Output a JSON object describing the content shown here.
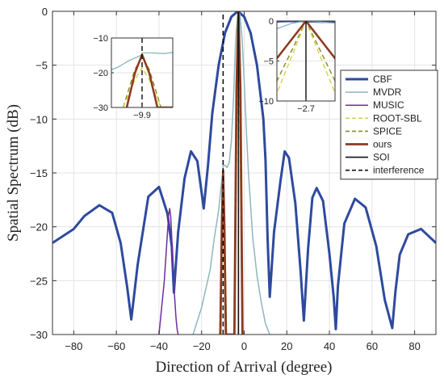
{
  "chart_data": {
    "type": "line",
    "xlabel": "Direction of Arrival (degree)",
    "ylabel": "Spatial Spectrum (dB)",
    "xlim": [
      -90,
      90
    ],
    "ylim": [
      -30,
      0
    ],
    "xticks": [
      -80,
      -60,
      -40,
      -20,
      0,
      20,
      40,
      60,
      80
    ],
    "yticks": [
      0,
      -5,
      -10,
      -15,
      -20,
      -25,
      -30
    ],
    "grid": true,
    "legend_position": "right",
    "series": [
      {
        "name": "CBF",
        "color": "#2e4a9e",
        "style": "solid",
        "x": [
          -90,
          -80,
          -75,
          -68,
          -62,
          -58,
          -55,
          -53,
          -50,
          -45,
          -40,
          -36,
          -34,
          -33,
          -31,
          -28,
          -25,
          -22,
          -20,
          -19,
          -17,
          -15,
          -12,
          -9,
          -6,
          -3,
          0,
          3,
          6,
          9,
          10,
          11,
          12,
          14,
          17,
          19,
          21,
          24,
          26.5,
          28,
          30,
          32,
          34,
          37,
          40,
          42,
          43,
          44,
          47,
          52,
          57,
          62,
          66,
          69.5,
          71,
          73,
          77,
          83,
          90
        ],
        "y": [
          -21.5,
          -20.2,
          -19.0,
          -18.0,
          -18.7,
          -21.5,
          -25.5,
          -28.6,
          -23.5,
          -17.2,
          -16.3,
          -18.8,
          -21.8,
          -26.1,
          -20.5,
          -15.5,
          -13.0,
          -13.9,
          -16.8,
          -18.3,
          -14.3,
          -9.5,
          -5.0,
          -2.0,
          -0.5,
          0.0,
          -0.5,
          -2.0,
          -5.0,
          -10.0,
          -13.8,
          -21.2,
          -26.5,
          -20.5,
          -15.8,
          -13.0,
          -13.6,
          -17.8,
          -24.2,
          -28.7,
          -22.0,
          -17.3,
          -16.4,
          -17.6,
          -22.5,
          -26.5,
          -29.5,
          -25.5,
          -19.7,
          -17.4,
          -18.2,
          -21.8,
          -26.8,
          -29.4,
          -26.0,
          -22.6,
          -20.7,
          -20.2,
          -21.5
        ]
      },
      {
        "name": "MVDR",
        "color": "#8fb6be",
        "style": "solid",
        "x": [
          -24,
          -20,
          -16,
          -14,
          -12,
          -11,
          -10,
          -9.9,
          -9,
          -8,
          -7,
          -6,
          -5,
          -4,
          -3,
          -2.7,
          -2,
          -1,
          0,
          1,
          2,
          3,
          4,
          6,
          8,
          10,
          12
        ],
        "y": [
          -30,
          -27.5,
          -24,
          -21,
          -18.5,
          -16.5,
          -15.0,
          -14.3,
          -14.3,
          -14.5,
          -14.0,
          -12.0,
          -8.0,
          -2.5,
          -0.3,
          0,
          -0.3,
          -2.5,
          -6.5,
          -11.0,
          -15.0,
          -18.0,
          -21.0,
          -24.5,
          -27.0,
          -29.0,
          -30.0
        ]
      },
      {
        "name": "MUSIC",
        "color": "#6a2fa0",
        "style": "solid",
        "x": [
          -40,
          -39,
          -38,
          -37.5,
          -37,
          -36.5,
          -36,
          -35.5,
          -35,
          -34.5,
          -34,
          -33.5,
          -33,
          -32.5,
          -32,
          -31.5,
          -31
        ],
        "y": [
          -30,
          -28,
          -26,
          -25,
          -23.5,
          -22,
          -20.5,
          -19,
          -18.3,
          -19,
          -21,
          -23.5,
          -25.5,
          -27,
          -28.5,
          -29.5,
          -30
        ]
      },
      {
        "name": "ROOT-SBL",
        "color": "#d4d44a",
        "style": "dashed",
        "x": [
          -11.5,
          -10.5,
          -9.9,
          -9.3,
          -8.3,
          -4.5,
          -3.5,
          -2.7,
          -1.9,
          -0.9
        ],
        "y": [
          -30,
          -22,
          -18.5,
          -22,
          -30,
          -30,
          -12,
          0,
          -12,
          -30
        ]
      },
      {
        "name": "SPICE",
        "color": "#8a8a2a",
        "style": "dashed",
        "x": [
          -11.5,
          -10.5,
          -9.9,
          -9.3,
          -8.3,
          -4.5,
          -3.5,
          -2.7,
          -1.9,
          -0.9
        ],
        "y": [
          -30,
          -19,
          -15.5,
          -19,
          -30,
          -30,
          -10,
          0,
          -10,
          -30
        ]
      },
      {
        "name": "ours",
        "color": "#8b3a1f",
        "style": "solid",
        "x": [
          -11.2,
          -10.5,
          -9.9,
          -9.3,
          -8.6,
          -4.6,
          -3.6,
          -2.7,
          -1.8,
          -0.8
        ],
        "y": [
          -30,
          -20,
          -14.8,
          -20,
          -30,
          -30,
          -7,
          0,
          -7,
          -30
        ]
      },
      {
        "name": "SOI",
        "color": "#111111",
        "style": "solid",
        "x": [
          -2.7,
          -2.7
        ],
        "y": [
          -30,
          0
        ]
      },
      {
        "name": "interference",
        "color": "#111111",
        "style": "dashed",
        "x": [
          -9.9,
          -9.9
        ],
        "y": [
          -30,
          0
        ]
      }
    ],
    "insets": [
      {
        "xlim": [
          -12.5,
          -7.3
        ],
        "ylim": [
          -30,
          -10
        ],
        "yticks": [
          -10,
          -20,
          -30
        ],
        "xticks": [
          -9.9
        ],
        "xticklabels": [
          "-9.9"
        ]
      },
      {
        "xlim": [
          -3.3,
          -2.1
        ],
        "ylim": [
          -10,
          0
        ],
        "yticks": [
          0,
          -5,
          -10
        ],
        "xticks": [
          -2.7
        ],
        "xticklabels": [
          "-2.7"
        ]
      }
    ]
  }
}
